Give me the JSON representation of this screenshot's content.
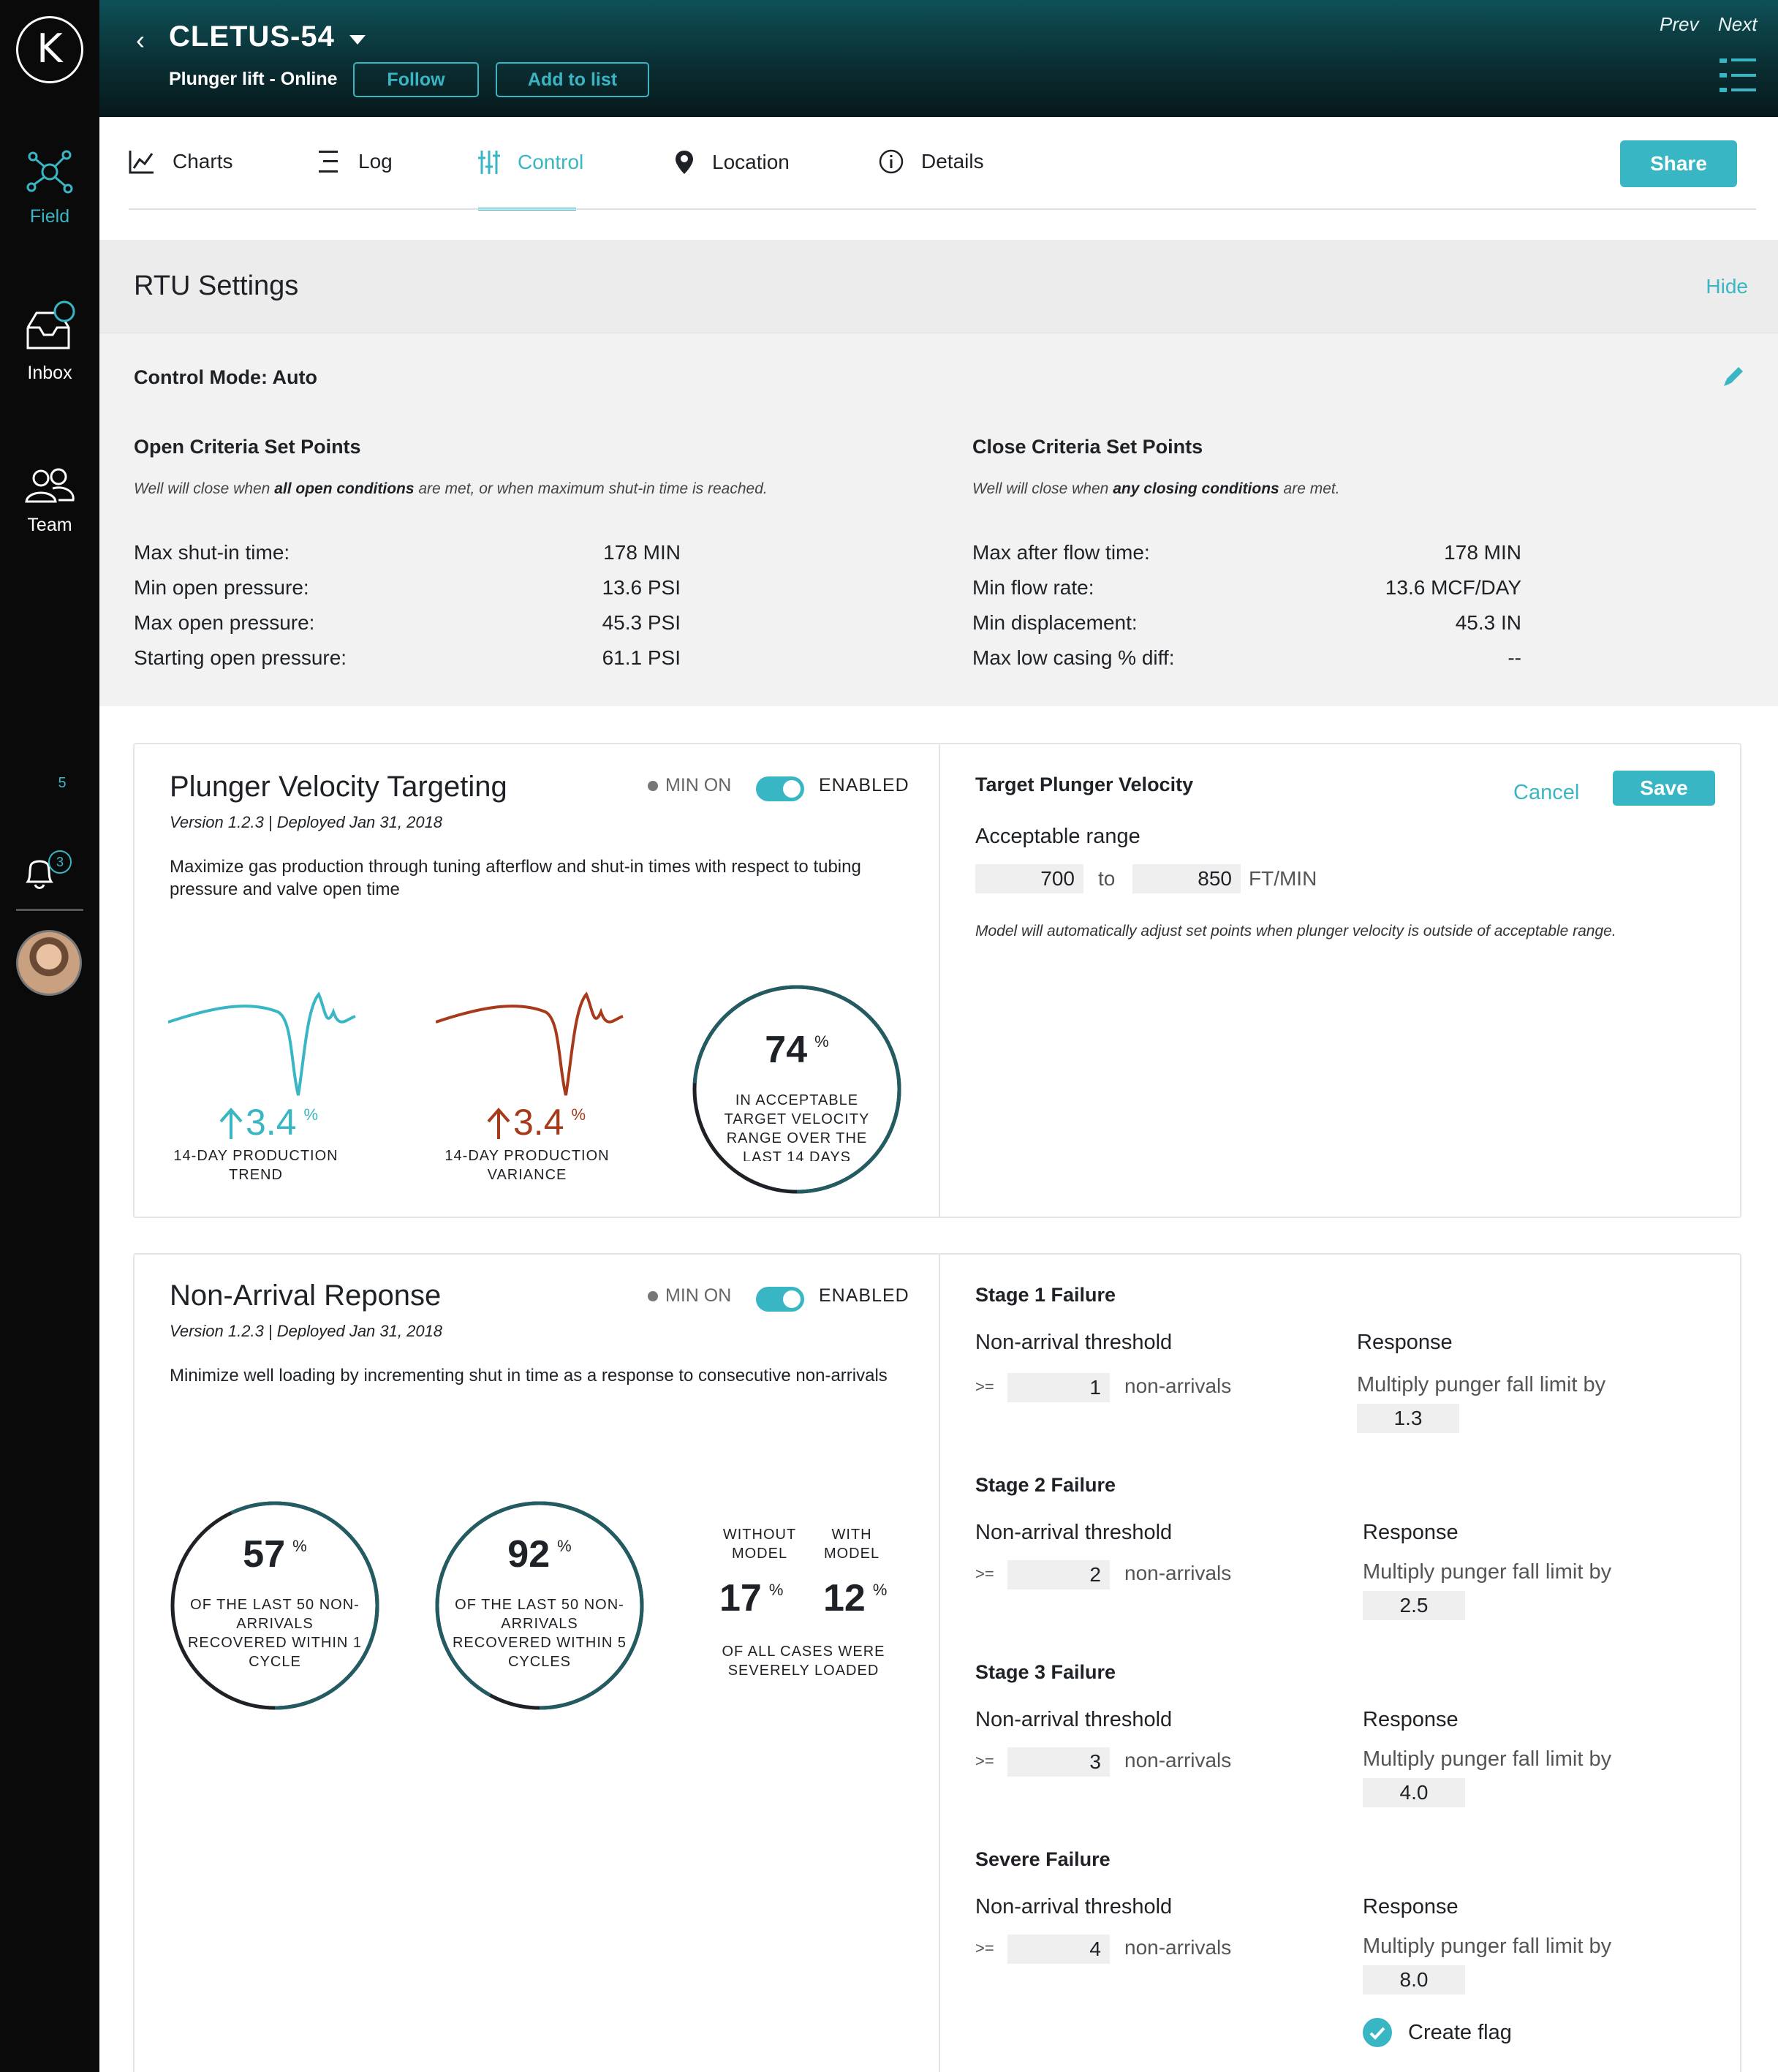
{
  "sidebar": {
    "logo": "K",
    "items": [
      {
        "label": "Field",
        "icon": "field-network-icon"
      },
      {
        "label": "Inbox",
        "icon": "inbox-icon"
      },
      {
        "label": "Team",
        "icon": "team-icon"
      }
    ],
    "count": "5",
    "notifications_badge": "3"
  },
  "header": {
    "title": "CLETUS-54",
    "subtitle": "Plunger lift - Online",
    "follow": "Follow",
    "add_to_list": "Add to list",
    "prev": "Prev",
    "next": "Next"
  },
  "tabs": [
    {
      "label": "Charts",
      "icon": "line-chart-icon"
    },
    {
      "label": "Log",
      "icon": "log-list-icon"
    },
    {
      "label": "Control",
      "icon": "sliders-icon"
    },
    {
      "label": "Location",
      "icon": "location-pin-icon"
    },
    {
      "label": "Details",
      "icon": "info-icon"
    }
  ],
  "active_tab": "Control",
  "share": "Share",
  "rtu": {
    "title": "RTU Settings",
    "hide": "Hide",
    "control_mode": "Control Mode: Auto",
    "open": {
      "title": "Open Criteria Set Points",
      "desc_a": "Well will close when ",
      "desc_b": "all open conditions",
      "desc_c": " are met, or when maximum shut-in time is reached.",
      "rows": [
        {
          "label": "Max shut-in time:",
          "value": "178 MIN"
        },
        {
          "label": "Min open pressure:",
          "value": "13.6 PSI"
        },
        {
          "label": "Max open pressure:",
          "value": "45.3 PSI"
        },
        {
          "label": "Starting open pressure:",
          "value": "61.1 PSI"
        }
      ]
    },
    "close": {
      "title": "Close Criteria Set Points",
      "desc_a": "Well will close when ",
      "desc_b": "any closing conditions",
      "desc_c": " are met.",
      "rows": [
        {
          "label": "Max after flow time:",
          "value": "178 MIN"
        },
        {
          "label": "Min flow rate:",
          "value": "13.6 MCF/DAY"
        },
        {
          "label": "Min displacement:",
          "value": "45.3 IN"
        },
        {
          "label": "Max low casing % diff:",
          "value": "--"
        }
      ]
    }
  },
  "pvt": {
    "title": "Plunger Velocity Targeting",
    "version": "Version 1.2.3 | Deployed Jan 31, 2018",
    "desc": "Maximize gas production through tuning afterflow and shut-in times with respect to tubing pressure and valve open time",
    "min_on": "MIN ON",
    "enabled": "ENABLED",
    "trend_value": "3.4",
    "trend_label": "14-DAY PRODUCTION TREND",
    "variance_value": "3.4",
    "variance_label": "14-DAY PRODUCTION VARIANCE",
    "gauge_value": "74",
    "gauge_fraction": 0.74,
    "gauge_label": "IN ACCEPTABLE TARGET VELOCITY RANGE OVER THE LAST 14 DAYS",
    "pct": "%",
    "right": {
      "title": "Target Plunger Velocity",
      "cancel": "Cancel",
      "save": "Save",
      "range_label": "Acceptable range",
      "low": "700",
      "to": "to",
      "high": "850",
      "unit": "FT/MIN",
      "note": "Model will automatically adjust set points when plunger velocity is outside of acceptable range."
    },
    "colors": {
      "trend": "#38b6c4",
      "variance": "#a83a1c"
    }
  },
  "nar": {
    "title": "Non-Arrival Reponse",
    "version": "Version 1.2.3 | Deployed Jan 31, 2018",
    "desc": "Minimize well loading by incrementing shut in time as a response to consecutive non-arrivals",
    "min_on": "MIN ON",
    "enabled": "ENABLED",
    "gauge1_value": "57",
    "gauge1_fraction": 0.57,
    "gauge1_label": "OF THE LAST 50 NON-ARRIVALS RECOVERED WITHIN 1 CYCLE",
    "gauge2_value": "92",
    "gauge2_fraction": 0.92,
    "gauge2_label": "OF THE LAST 50 NON-ARRIVALS RECOVERED WITHIN 5 CYCLES",
    "without_label": "WITHOUT MODEL",
    "with_label": "WITH MODEL",
    "without_value": "17",
    "with_value": "12",
    "loaded_label": "OF ALL CASES WERE SEVERELY LOADED",
    "pct": "%",
    "stages": [
      {
        "title": "Stage 1 Failure",
        "threshold_label": "Non-arrival threshold",
        "ge": ">=",
        "threshold": "1",
        "unit": "non-arrivals",
        "response_label": "Response",
        "response_text": "Multiply punger fall limit by",
        "multiplier": "1.3"
      },
      {
        "title": "Stage 2 Failure",
        "threshold_label": "Non-arrival threshold",
        "ge": ">=",
        "threshold": "2",
        "unit": "non-arrivals",
        "response_label": "Response",
        "response_text": "Multiply punger fall limit by",
        "multiplier": "2.5"
      },
      {
        "title": "Stage 3 Failure",
        "threshold_label": "Non-arrival threshold",
        "ge": ">=",
        "threshold": "3",
        "unit": "non-arrivals",
        "response_label": "Response",
        "response_text": "Multiply punger fall limit by",
        "multiplier": "4.0"
      },
      {
        "title": "Severe Failure",
        "threshold_label": "Non-arrival threshold",
        "ge": ">=",
        "threshold": "4",
        "unit": "non-arrivals",
        "response_label": "Response",
        "response_text": "Multiply punger fall limit by",
        "multiplier": "8.0"
      }
    ],
    "create_flag": "Create flag"
  }
}
